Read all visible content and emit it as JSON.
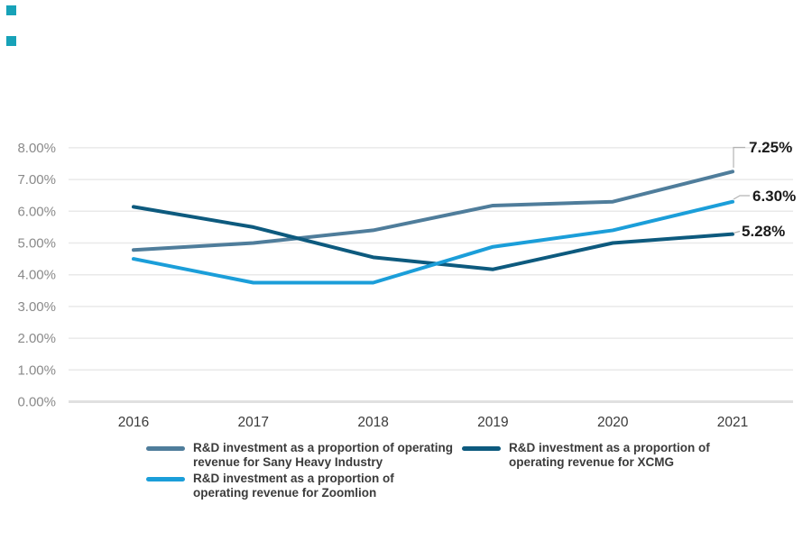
{
  "chart_data": {
    "type": "line",
    "categories": [
      "2016",
      "2017",
      "2018",
      "2019",
      "2020",
      "2021"
    ],
    "series": [
      {
        "id": "sany",
        "name": "R&D investment as a proportion of operating revenue for Sany Heavy Industry",
        "color": "#4f7d9b",
        "values": [
          4.78,
          5.0,
          5.4,
          6.18,
          6.3,
          7.25
        ],
        "end_label": "7.25%"
      },
      {
        "id": "xcmg",
        "name": "R&D investment as a proportion of operating revenue for XCMG",
        "color": "#0d5a7e",
        "values": [
          6.14,
          5.5,
          4.55,
          4.17,
          5.0,
          5.28
        ],
        "end_label": "5.28%"
      },
      {
        "id": "zoomlion",
        "name": "R&D investment as a proportion of operating revenue for Zoomlion",
        "color": "#1b9ed9",
        "values": [
          4.5,
          3.75,
          3.75,
          4.88,
          5.4,
          6.3
        ],
        "end_label": "6.30%"
      }
    ],
    "yticks": [
      "0.00%",
      "1.00%",
      "2.00%",
      "3.00%",
      "4.00%",
      "5.00%",
      "6.00%",
      "7.00%",
      "8.00%"
    ],
    "ylim": [
      0,
      8
    ],
    "xlabel": "",
    "ylabel": "",
    "title": "",
    "grid": true,
    "legend_position": "bottom"
  },
  "legend": {
    "items": [
      {
        "series": 0,
        "line1": "R&D investment as a proportion of operating",
        "line2": "revenue for Sany Heavy Industry"
      },
      {
        "series": 1,
        "line1": "R&D investment as a proportion of",
        "line2": "operating revenue for XCMG"
      },
      {
        "series": 2,
        "line1": "R&D investment as a proportion of",
        "line2": "operating revenue for Zoomlion"
      }
    ]
  },
  "decor": {
    "square_color": "#17a2b8"
  }
}
